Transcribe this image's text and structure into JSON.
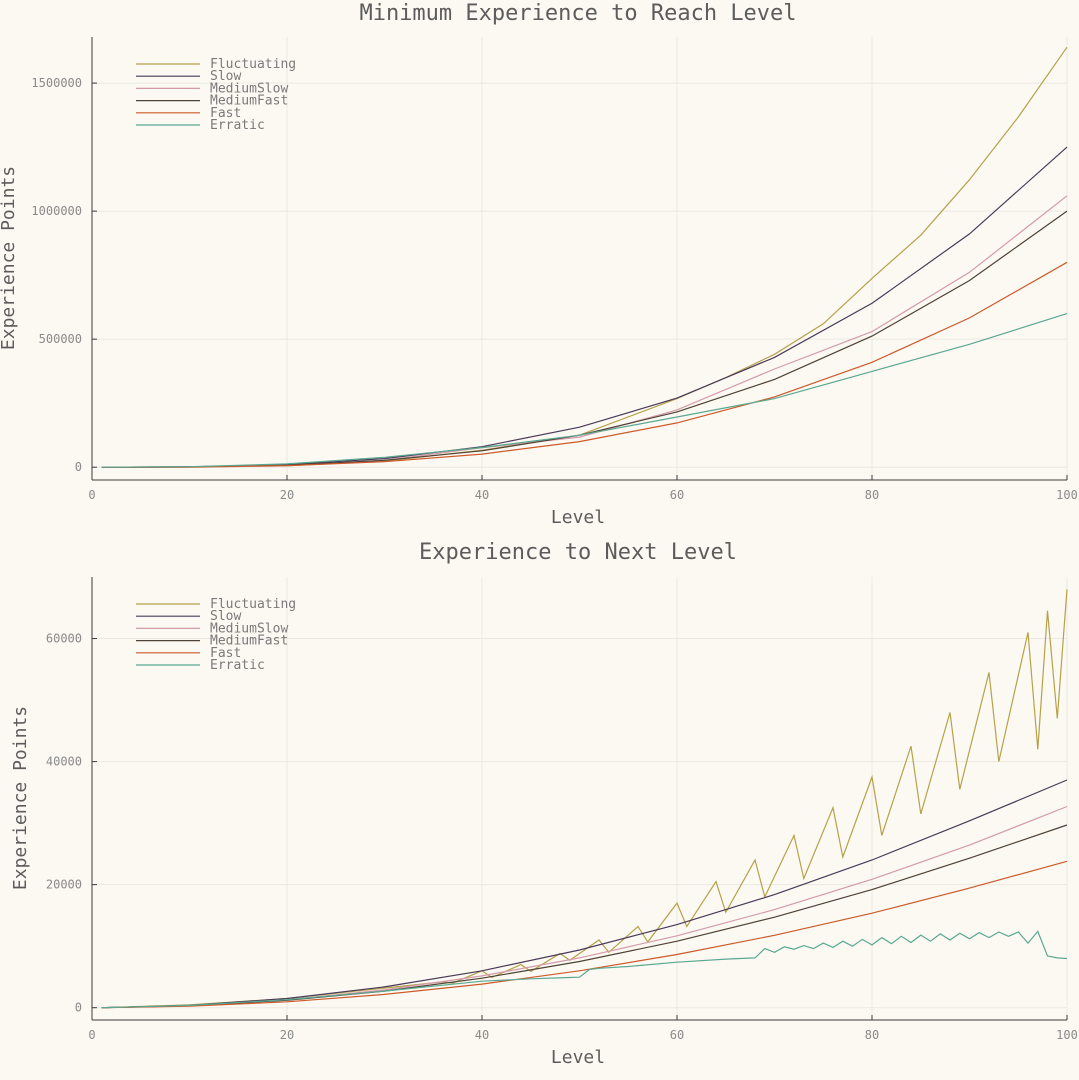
{
  "colors": {
    "Fluctuating": "#b4a24a",
    "Slow": "#4a3a5a",
    "MediumSlow": "#d49aaa",
    "MediumFast": "#4e4236",
    "Fast": "#cc5a2a",
    "Erratic": "#5aa892"
  },
  "chart_data": [
    {
      "type": "line",
      "title": "Minimum Experience to Reach Level",
      "xlabel": "Level",
      "ylabel": "Experience Points",
      "xlim": [
        0,
        100
      ],
      "ylim": [
        -50000,
        1680000
      ],
      "xticks": [
        0,
        20,
        40,
        60,
        80,
        100
      ],
      "yticks": [
        0,
        500000,
        1000000,
        1500000
      ],
      "grid": true,
      "legend": "top-left",
      "series": [
        {
          "name": "Fluctuating",
          "x": [
            1,
            10,
            20,
            30,
            40,
            50,
            60,
            65,
            70,
            75,
            80,
            85,
            90,
            95,
            100
          ],
          "y": [
            0,
            540,
            5440,
            23760,
            66560,
            125000,
            267840,
            350470,
            441000,
            560160,
            737280,
            906060,
            1122660,
            1367440,
            1640000
          ]
        },
        {
          "name": "Slow",
          "x": [
            1,
            10,
            20,
            30,
            40,
            50,
            60,
            70,
            80,
            90,
            100
          ],
          "y": [
            0,
            1250,
            10000,
            33750,
            80000,
            156250,
            270000,
            428750,
            640000,
            911250,
            1250000
          ]
        },
        {
          "name": "MediumSlow",
          "x": [
            1,
            10,
            20,
            30,
            40,
            50,
            60,
            70,
            80,
            90,
            100
          ],
          "y": [
            0,
            560,
            5460,
            27460,
            75660,
            117360,
            223810,
            383390,
            529510,
            761110,
            1059860
          ]
        },
        {
          "name": "MediumFast",
          "x": [
            1,
            10,
            20,
            30,
            40,
            50,
            60,
            70,
            80,
            90,
            100
          ],
          "y": [
            0,
            1000,
            8000,
            27000,
            64000,
            125000,
            216000,
            343000,
            512000,
            729000,
            1000000
          ]
        },
        {
          "name": "Fast",
          "x": [
            1,
            10,
            20,
            30,
            40,
            50,
            60,
            70,
            80,
            90,
            100
          ],
          "y": [
            0,
            800,
            6400,
            21600,
            51200,
            100000,
            172800,
            274400,
            409600,
            583200,
            800000
          ]
        },
        {
          "name": "Erratic",
          "x": [
            1,
            10,
            20,
            30,
            40,
            50,
            60,
            70,
            80,
            90,
            100
          ],
          "y": [
            0,
            1800,
            12800,
            38500,
            76800,
            125000,
            196100,
            268000,
            374000,
            480000,
            600000
          ]
        }
      ]
    },
    {
      "type": "line",
      "title": "Experience to Next Level",
      "xlabel": "Level",
      "ylabel": "Experience Points",
      "xlim": [
        0,
        100
      ],
      "ylim": [
        -2000,
        70000
      ],
      "xticks": [
        0,
        20,
        40,
        60,
        80,
        100
      ],
      "yticks": [
        0,
        20000,
        40000,
        60000
      ],
      "grid": true,
      "legend": "top-left",
      "series": [
        {
          "name": "Fluctuating",
          "x": [
            1,
            10,
            20,
            30,
            36,
            37,
            40,
            41,
            44,
            45,
            48,
            49,
            52,
            53,
            56,
            57,
            60,
            61,
            64,
            65,
            68,
            69,
            72,
            73,
            76,
            77,
            80,
            81,
            84,
            85,
            88,
            89,
            92,
            93,
            96,
            97,
            98,
            99,
            100
          ],
          "y": [
            0,
            450,
            1500,
            3200,
            4200,
            4000,
            6000,
            4900,
            7000,
            5900,
            8800,
            7700,
            11000,
            9000,
            13200,
            10700,
            17000,
            13200,
            20500,
            15500,
            24000,
            18000,
            28000,
            21000,
            32500,
            24500,
            37500,
            28000,
            42500,
            31500,
            48000,
            35500,
            54500,
            40000,
            61000,
            42000,
            64500,
            47000,
            68000
          ]
        },
        {
          "name": "Slow",
          "x": [
            1,
            10,
            20,
            30,
            40,
            50,
            60,
            70,
            80,
            90,
            100
          ],
          "y": [
            0,
            375,
            1500,
            3375,
            6000,
            9375,
            13500,
            18375,
            24000,
            30375,
            37000
          ]
        },
        {
          "name": "MediumSlow",
          "x": [
            1,
            10,
            20,
            30,
            40,
            50,
            60,
            70,
            80,
            90,
            100
          ],
          "y": [
            0,
            300,
            1260,
            2900,
            5160,
            8100,
            11680,
            15940,
            20860,
            26420,
            32700
          ]
        },
        {
          "name": "MediumFast",
          "x": [
            1,
            10,
            20,
            30,
            40,
            50,
            60,
            70,
            80,
            90,
            100
          ],
          "y": [
            0,
            300,
            1200,
            2700,
            4800,
            7500,
            10800,
            14700,
            19200,
            24300,
            29700
          ]
        },
        {
          "name": "Fast",
          "x": [
            1,
            10,
            20,
            30,
            40,
            50,
            60,
            70,
            80,
            90,
            100
          ],
          "y": [
            0,
            240,
            960,
            2160,
            3840,
            6000,
            8640,
            11760,
            15360,
            19440,
            23800
          ]
        },
        {
          "name": "Erratic",
          "x": [
            1,
            10,
            20,
            30,
            40,
            45,
            49,
            50,
            51,
            52,
            55,
            60,
            65,
            68,
            69,
            70,
            71,
            72,
            73,
            74,
            75,
            76,
            77,
            78,
            79,
            80,
            81,
            82,
            83,
            84,
            85,
            86,
            87,
            88,
            89,
            90,
            91,
            92,
            93,
            94,
            95,
            96,
            97,
            98,
            99,
            100
          ],
          "y": [
            0,
            380,
            1300,
            2700,
            4300,
            4700,
            4900,
            4950,
            6200,
            6400,
            6700,
            7400,
            7900,
            8100,
            9600,
            9000,
            9900,
            9500,
            10100,
            9600,
            10500,
            9800,
            10800,
            10000,
            11100,
            10200,
            11400,
            10400,
            11600,
            10600,
            11800,
            10800,
            12000,
            11000,
            12100,
            11200,
            12200,
            11400,
            12300,
            11600,
            12300,
            10500,
            12400,
            8400,
            8100,
            8000
          ]
        }
      ]
    }
  ]
}
